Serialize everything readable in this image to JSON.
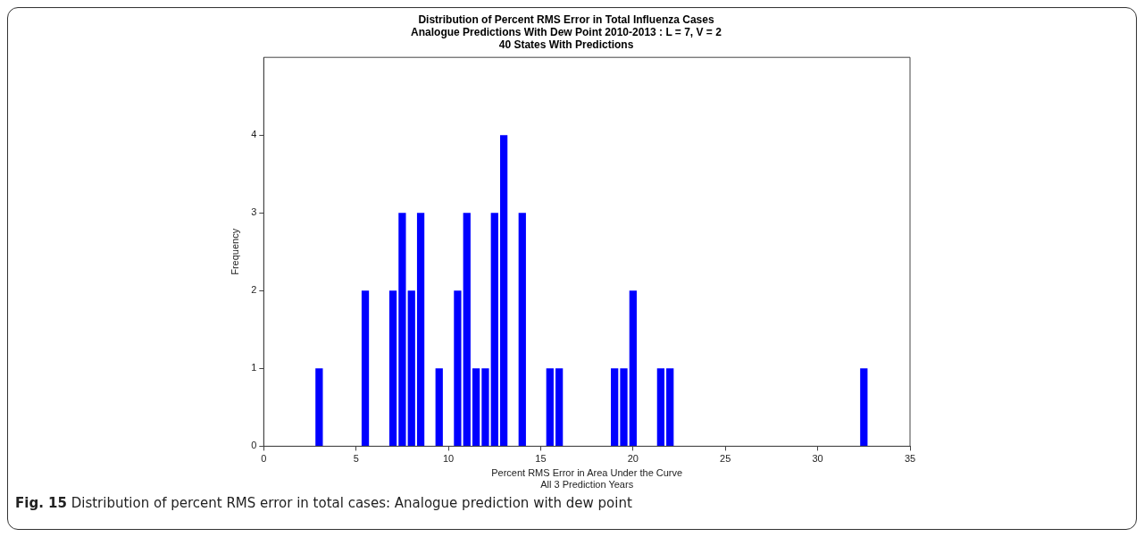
{
  "chart_data": {
    "type": "bar",
    "title": "Distribution of Percent RMS Error in Total Influenza Cases",
    "subtitle": "Analogue Predictions With Dew Point 2010-2013 : L = 7, V = 2\n40 States With Predictions",
    "xlabel": "Percent RMS Error in Area Under the Curve\nAll 3 Prediction Years",
    "ylabel": "Frequency",
    "x": [
      3,
      5.5,
      7,
      7.5,
      8,
      8.5,
      9.5,
      10.5,
      11,
      11.5,
      12,
      12.5,
      13,
      14,
      15.5,
      16,
      19,
      19.5,
      20,
      21.5,
      22,
      32.5
    ],
    "values": [
      1,
      2,
      2,
      3,
      2,
      3,
      1,
      2,
      3,
      1,
      1,
      3,
      4,
      3,
      1,
      1,
      1,
      1,
      2,
      1,
      1,
      1
    ],
    "color": "#0000ff",
    "xlim": [
      0,
      35
    ],
    "xticks": [
      0,
      5,
      10,
      15,
      20,
      25,
      30,
      35
    ],
    "ylim": [
      0,
      5
    ],
    "yticks": [
      0,
      1,
      2,
      3,
      4
    ],
    "grid": false,
    "legend": false,
    "annotations": [
      "Fig. 15 Distribution of percent RMS error in total cases: Analogue prediction with dew point"
    ]
  }
}
